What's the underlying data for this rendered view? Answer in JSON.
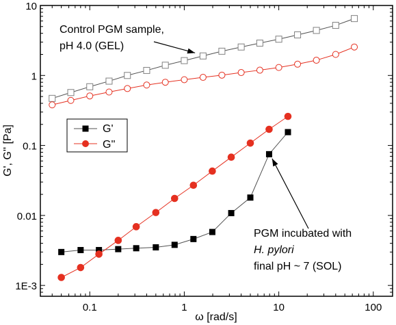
{
  "chart_data": {
    "type": "scatter",
    "xscale": "log",
    "yscale": "log",
    "xlim": [
      0.03,
      160
    ],
    "ylim": [
      0.0007,
      10
    ],
    "xlabel": "ω [rad/s]",
    "ylabel": "G', G'' [Pa]",
    "x_tick_labels": [
      "0.1",
      "1",
      "10",
      "100"
    ],
    "x_tick_values": [
      0.1,
      1,
      10,
      100
    ],
    "y_tick_labels": [
      "1E-3",
      "0.01",
      "0.1",
      "1",
      "10"
    ],
    "y_tick_values": [
      0.001,
      0.01,
      0.1,
      1,
      10
    ],
    "legend": {
      "placement": "left-middle",
      "entries": [
        {
          "label": "G'",
          "marker": "square",
          "color": "#000000"
        },
        {
          "label": "G''",
          "marker": "circle",
          "color": "#e53020"
        }
      ]
    },
    "series": [
      {
        "name": "G'",
        "group": "Control PGM sample, pH 4.0 (GEL)",
        "marker": "square",
        "filled": false,
        "color": "#808080",
        "line": "#505050",
        "x": [
          0.04,
          0.063,
          0.1,
          0.16,
          0.25,
          0.4,
          0.63,
          1.0,
          1.58,
          2.5,
          4.0,
          6.3,
          10,
          15.8,
          25,
          40,
          63
        ],
        "y": [
          0.47,
          0.57,
          0.69,
          0.83,
          1.0,
          1.18,
          1.4,
          1.63,
          1.9,
          2.22,
          2.55,
          2.9,
          3.3,
          3.8,
          4.4,
          5.2,
          6.5
        ]
      },
      {
        "name": "G''",
        "group": "Control PGM sample, pH 4.0 (GEL)",
        "marker": "circle",
        "filled": false,
        "color": "#e53020",
        "line": "#e53020",
        "x": [
          0.04,
          0.063,
          0.1,
          0.16,
          0.25,
          0.4,
          0.63,
          1.0,
          1.58,
          2.5,
          4.0,
          6.3,
          10,
          15.8,
          25,
          40,
          63
        ],
        "y": [
          0.38,
          0.44,
          0.51,
          0.58,
          0.65,
          0.73,
          0.8,
          0.87,
          0.94,
          1.01,
          1.1,
          1.19,
          1.3,
          1.45,
          1.65,
          2.0,
          2.55
        ]
      },
      {
        "name": "G'",
        "group": "PGM incubated with H. pylori, final pH ~ 7 (SOL)",
        "marker": "square",
        "filled": true,
        "color": "#000000",
        "line": "#505050",
        "x": [
          0.05,
          0.08,
          0.125,
          0.2,
          0.31,
          0.5,
          0.79,
          1.25,
          1.98,
          3.14,
          5.0,
          7.9,
          12.5
        ],
        "y": [
          0.003,
          0.0032,
          0.0032,
          0.0033,
          0.0034,
          0.0035,
          0.0038,
          0.0046,
          0.0058,
          0.0108,
          0.018,
          0.075,
          0.155
        ]
      },
      {
        "name": "G''",
        "group": "PGM incubated with H. pylori, final pH ~ 7 (SOL)",
        "marker": "circle",
        "filled": true,
        "color": "#e53020",
        "line": "#e53020",
        "x": [
          0.05,
          0.08,
          0.125,
          0.2,
          0.31,
          0.5,
          0.79,
          1.25,
          1.98,
          3.14,
          5.0,
          7.9,
          12.5
        ],
        "y": [
          0.0013,
          0.0018,
          0.0028,
          0.0044,
          0.0069,
          0.011,
          0.0175,
          0.027,
          0.043,
          0.068,
          0.108,
          0.17,
          0.26
        ]
      }
    ],
    "annotations": [
      {
        "lines": [
          "Control  PGM sample,",
          "pH 4.0 (GEL)"
        ],
        "arrow_to": {
          "x": 1.3,
          "y": 2.1
        }
      },
      {
        "lines": [
          "PGM incubated with",
          "H. pylori",
          "final pH ~ 7 (SOL)"
        ],
        "italic_line": 1,
        "arrow_to": {
          "x": 8.5,
          "y": 0.065
        }
      }
    ]
  }
}
